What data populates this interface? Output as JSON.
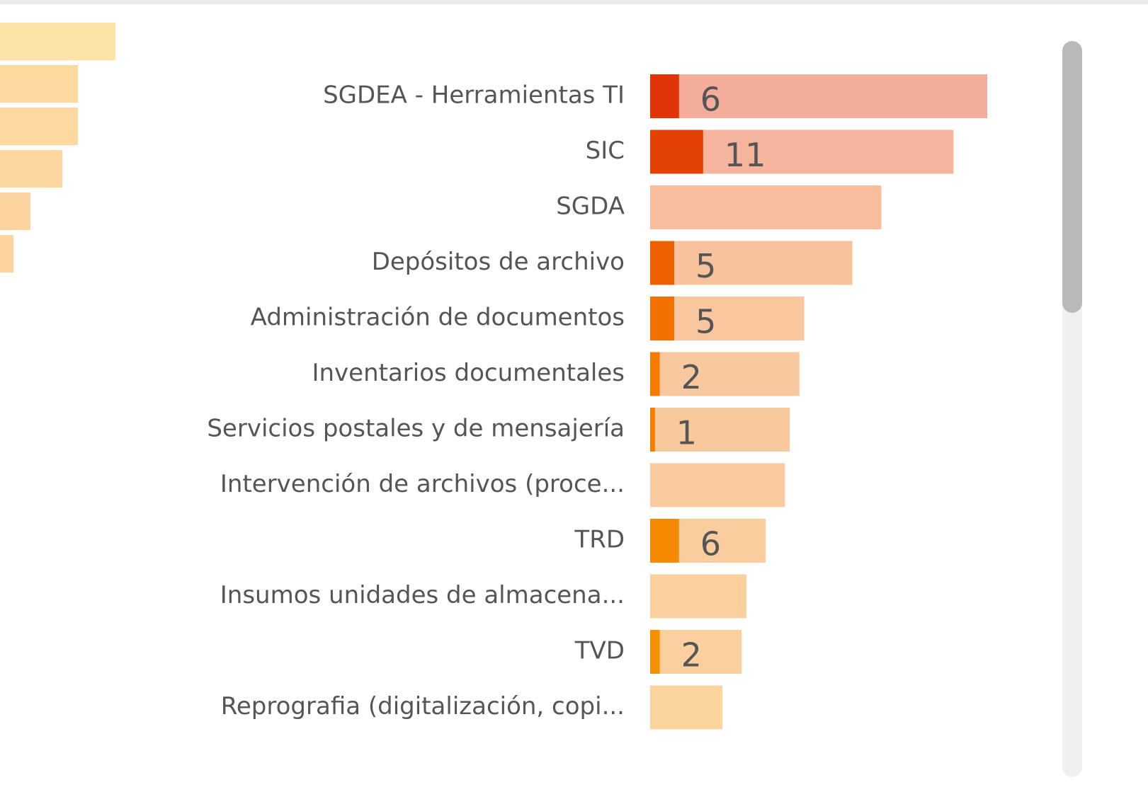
{
  "chart_data": [
    {
      "type": "bar",
      "categories": [
        "SGDEA - Herramientas TI",
        "SIC",
        "SGDA",
        "Depósitos de archivo",
        "Administración de documentos",
        "Inventarios documentales",
        "Servicios postales y de mensajería",
        "Intervención de archivos (proce...",
        "TRD",
        "Insumos unidades de almacena...",
        "TVD",
        "Reprografia (digitalización, copi..."
      ],
      "values": [
        70,
        63,
        48,
        42,
        32,
        31,
        29,
        28,
        24,
        20,
        19,
        15
      ],
      "highlighted": [
        6,
        11,
        null,
        5,
        5,
        2,
        1,
        null,
        6,
        null,
        2,
        null
      ],
      "colors": [
        "#f4ad9b",
        "#f5b49c",
        "#f7bd9c",
        "#f8c29d",
        "#f9c69e",
        "#f9c89e",
        "#f9c99e",
        "#facb9e",
        "#facd9e",
        "#fbcf9e",
        "#fbd09e",
        "#fcd49d"
      ],
      "highlight_colors": [
        "#e03508",
        "#e44204",
        "#ea5202",
        "#ee6100",
        "#f27000",
        "#f47a00",
        "#f47d00",
        "#f58300",
        "#f58a00",
        "#f68d00",
        "#f79000",
        "#f89400"
      ],
      "xlim": [
        0,
        85
      ]
    },
    {
      "type": "bar",
      "values": [
        163,
        110,
        110,
        88,
        43,
        19
      ],
      "colors": [
        "#fde4a6",
        "#fdd9a0",
        "#fdd9a0",
        "#fdd6a0",
        "#fdd3a0",
        "#fdd3a0"
      ],
      "xlim": [
        0,
        170
      ]
    }
  ]
}
